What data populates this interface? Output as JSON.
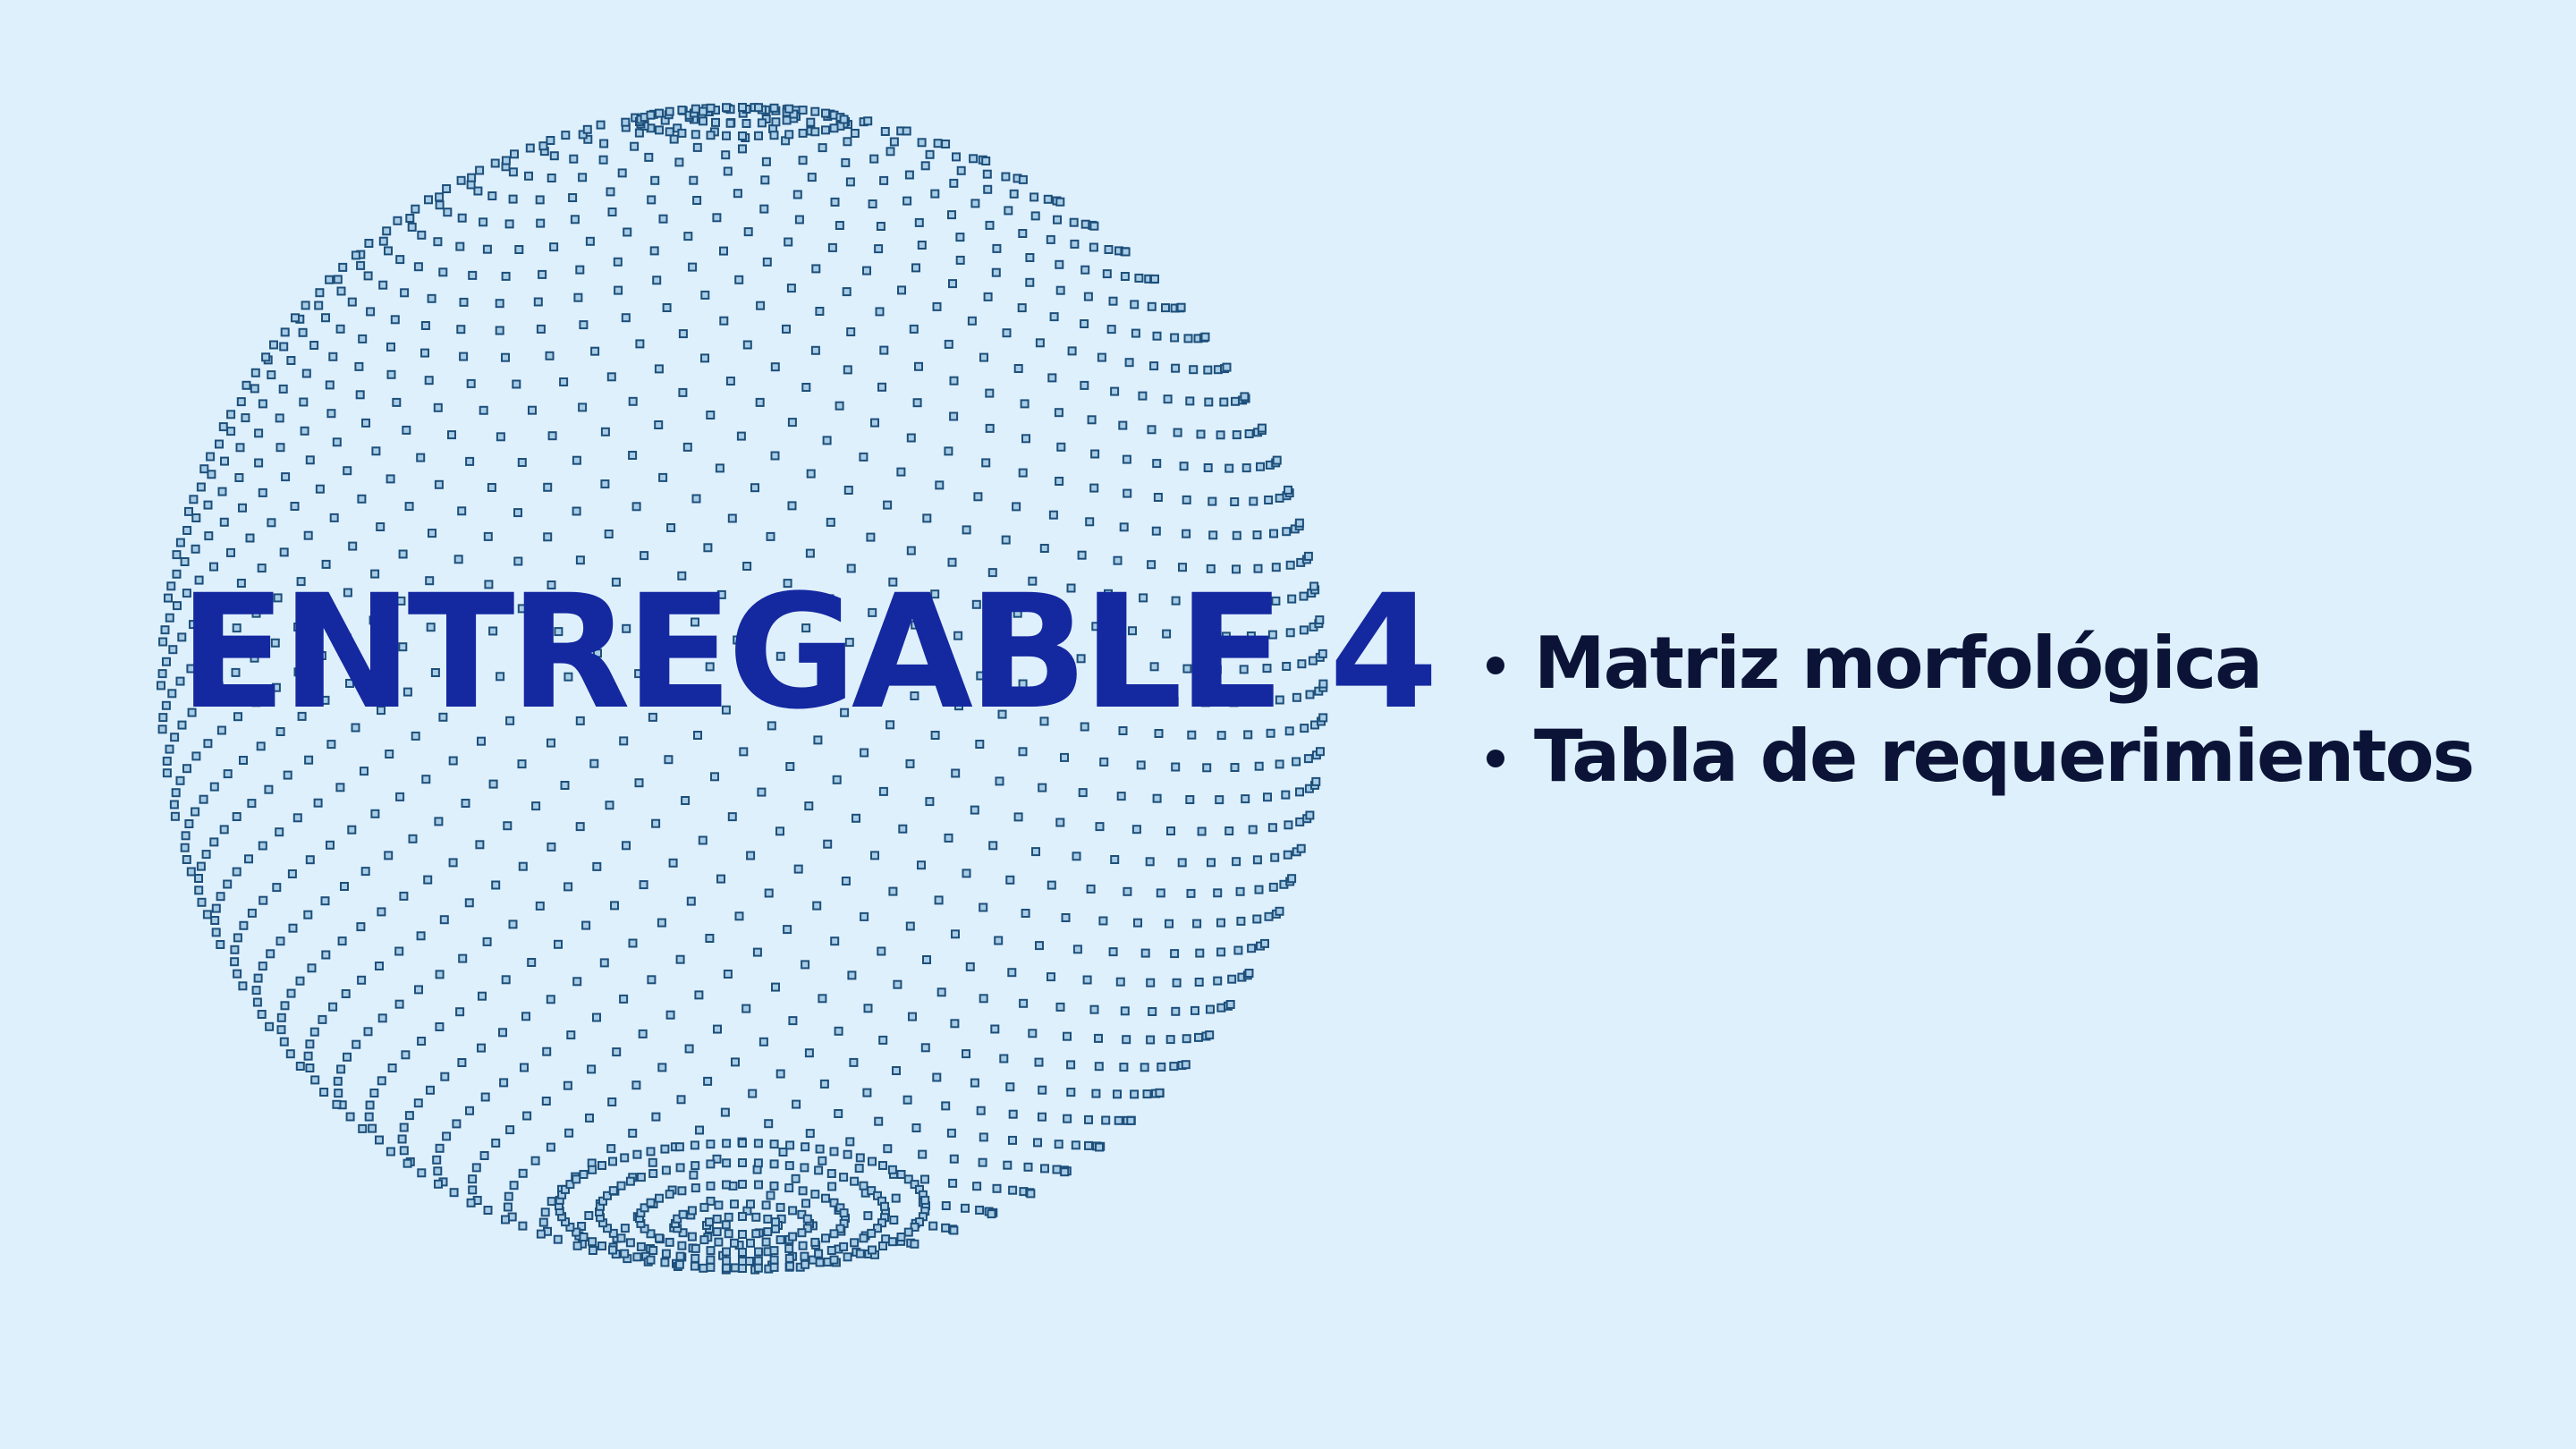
{
  "slide": {
    "title": "ENTREGABLE 4",
    "bullets": [
      "Matriz morfológica",
      "Tabla de requerimientos"
    ]
  },
  "colors": {
    "background": "#dff0fd",
    "title": "#1428a0",
    "bullet_text": "#0b1437",
    "sphere_point_fill": "#a9cde6",
    "sphere_point_stroke": "#1d4f7a"
  }
}
